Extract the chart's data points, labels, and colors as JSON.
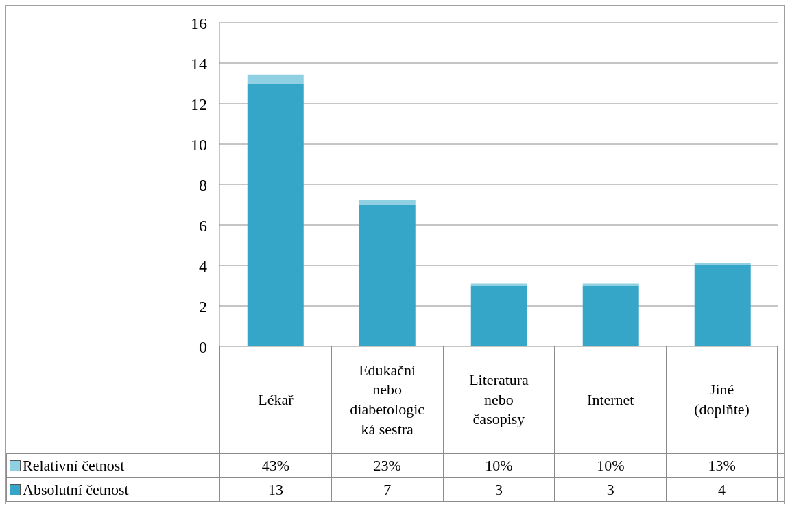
{
  "chart_data": {
    "type": "bar",
    "stacked": true,
    "categories": [
      "Lékař",
      "Edukační nebo diabetologická sestra",
      "Literatura nebo časopisy",
      "Internet",
      "Jiné (doplňte)"
    ],
    "series": [
      {
        "name": "Absolutní četnost",
        "color": "#35a6c8",
        "values": [
          13,
          7,
          3,
          3,
          4
        ],
        "value_labels": [
          "13",
          "7",
          "3",
          "3",
          "4"
        ]
      },
      {
        "name": "Relativní četnost",
        "color": "#8fd0e2",
        "values": [
          0.43,
          0.23,
          0.1,
          0.1,
          0.13
        ],
        "value_labels": [
          "43%",
          "23%",
          "10%",
          "10%",
          "13%"
        ]
      }
    ],
    "ylim": [
      0,
      16
    ],
    "yticks": [
      0,
      2,
      4,
      6,
      8,
      10,
      12,
      14,
      16
    ],
    "grid": "y",
    "legend": "bottom"
  }
}
